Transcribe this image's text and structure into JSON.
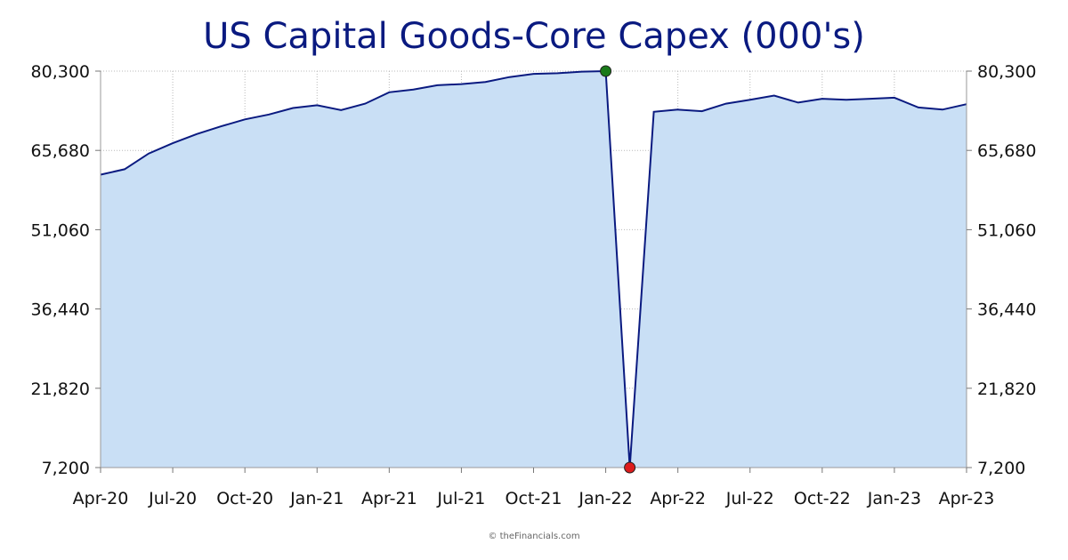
{
  "chart_data": {
    "type": "area",
    "title": "US Capital Goods-Core Capex (000's)",
    "xlabel": "",
    "ylabel": "",
    "y_ticks": [
      "7,200",
      "21,820",
      "36,440",
      "51,060",
      "65,680",
      "80,300"
    ],
    "x_ticks": [
      "Apr-20",
      "Jul-20",
      "Oct-20",
      "Jan-21",
      "Apr-21",
      "Jul-21",
      "Oct-21",
      "Jan-22",
      "Apr-22",
      "Jul-22",
      "Oct-22",
      "Jan-23",
      "Apr-23"
    ],
    "ylim": [
      7200,
      80300
    ],
    "grid": true,
    "series": [
      {
        "x": [
          "Apr-20",
          "May-20",
          "Jun-20",
          "Jul-20",
          "Aug-20",
          "Sep-20",
          "Oct-20",
          "Nov-20",
          "Dec-20",
          "Jan-21",
          "Feb-21",
          "Mar-21",
          "Apr-21",
          "May-21",
          "Jun-21",
          "Jul-21",
          "Aug-21",
          "Sep-21",
          "Oct-21",
          "Nov-21",
          "Dec-21",
          "Jan-22",
          "Feb-22",
          "Mar-22",
          "Apr-22",
          "May-22",
          "Jun-22",
          "Jul-22",
          "Aug-22",
          "Sep-22",
          "Oct-22",
          "Nov-22",
          "Dec-22",
          "Jan-23",
          "Feb-23",
          "Apr-23_prev",
          "Apr-23"
        ],
        "values": [
          61200,
          62200,
          65100,
          67000,
          68700,
          70100,
          71400,
          72300,
          73500,
          74000,
          73100,
          74300,
          76400,
          76900,
          77700,
          77900,
          78300,
          79200,
          79800,
          79900,
          80200,
          80300,
          7200,
          72800,
          73200,
          72900,
          74300,
          75000,
          75800,
          74500,
          75200,
          75000,
          75200,
          75400,
          73600,
          73200,
          74200
        ]
      }
    ],
    "markers": {
      "max": {
        "label": "high",
        "value": 80300,
        "color": "#1a7a1a"
      },
      "min": {
        "label": "low",
        "value": 7200,
        "color": "#dd1c1c"
      }
    },
    "colors": {
      "line": "#0a1a80",
      "fill": "#c9dff5",
      "grid": "#b9b9b9"
    },
    "credit": "© theFinancials.com"
  }
}
